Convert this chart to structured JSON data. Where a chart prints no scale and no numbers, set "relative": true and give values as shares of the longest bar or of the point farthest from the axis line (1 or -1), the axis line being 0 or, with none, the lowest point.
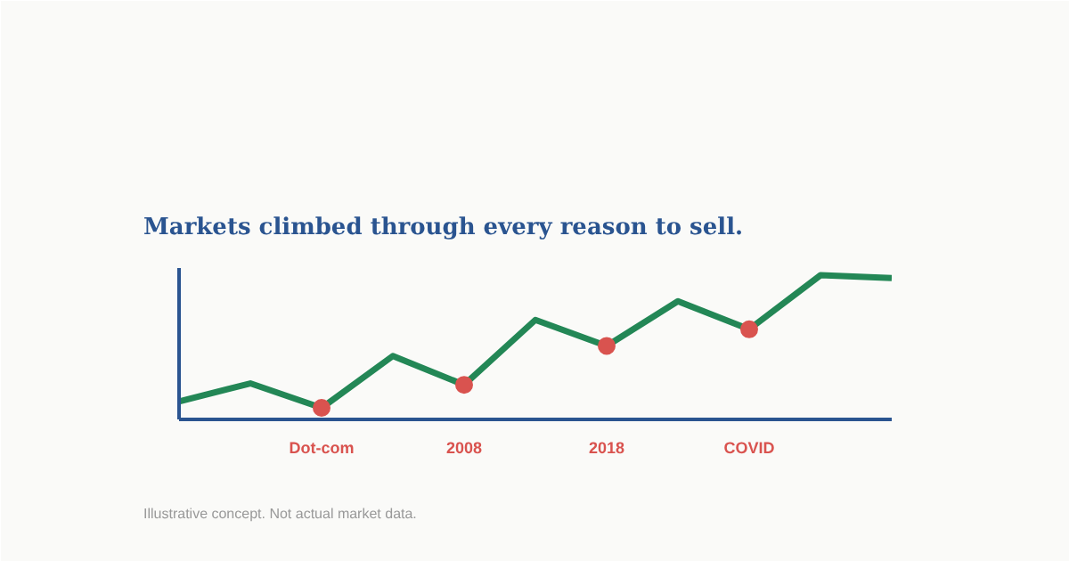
{
  "chart_data": {
    "type": "line",
    "title": "Markets climbed through every reason to sell.",
    "categories": [
      null,
      null,
      "Dot-com",
      null,
      "2008",
      null,
      "2018",
      null,
      "COVID",
      null,
      null
    ],
    "relative": true,
    "grid": false,
    "marker": "none",
    "line_style": "solid",
    "series": [
      {
        "color": "#238756",
        "values": [
          0.125,
          0.25,
          0.08,
          0.44,
          0.24,
          0.69,
          0.51,
          0.82,
          0.625,
          1,
          0.98
        ]
      },
      {
        "type": "scatter",
        "marker": "circle",
        "color": "#d9534f",
        "values": [
          null,
          null,
          0.08,
          null,
          0.24,
          null,
          0.51,
          null,
          0.625,
          null,
          null
        ]
      }
    ],
    "annotations": [
      "Illustrative concept. Not actual market data."
    ]
  }
}
